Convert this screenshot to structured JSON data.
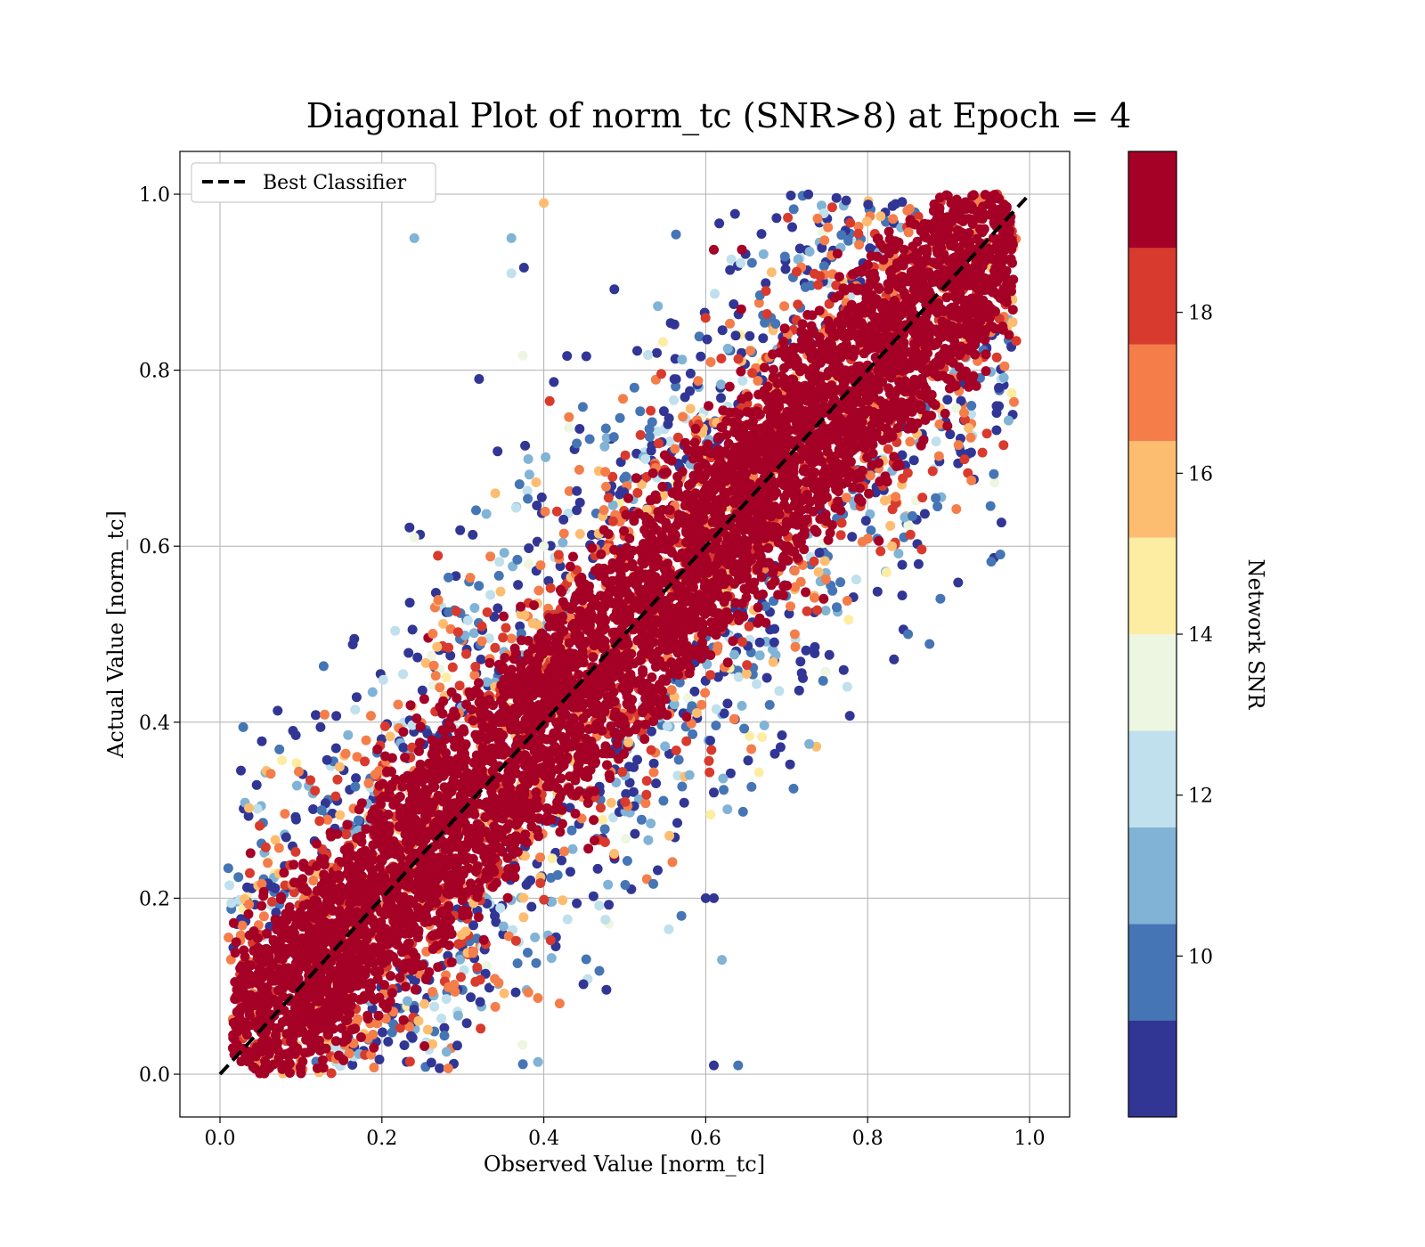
{
  "chart_data": {
    "type": "scatter",
    "title": "Diagonal Plot of norm_tc (SNR>8) at Epoch = 4",
    "xlabel": "Observed Value [norm_tc]",
    "ylabel": "Actual Value [norm_tc]",
    "xlim": [
      -0.05,
      1.05
    ],
    "ylim": [
      -0.05,
      1.05
    ],
    "xticks": [
      "0.0",
      "0.2",
      "0.4",
      "0.6",
      "0.8",
      "1.0"
    ],
    "yticks": [
      "0.0",
      "0.2",
      "0.4",
      "0.6",
      "0.8",
      "1.0"
    ],
    "xtick_values": [
      0,
      0.2,
      0.4,
      0.6,
      0.8,
      1.0
    ],
    "ytick_values": [
      0,
      0.2,
      0.4,
      0.6,
      0.8,
      1.0
    ],
    "grid": true,
    "legend": {
      "position": "top-left",
      "entries": [
        "Best Classifier"
      ]
    },
    "reference_line": {
      "name": "Best Classifier",
      "x": [
        0,
        1
      ],
      "y": [
        0,
        1
      ],
      "style": "dashed",
      "color": "#000000"
    },
    "colorbar": {
      "label": "Network SNR",
      "ticks": [
        "10",
        "12",
        "14",
        "16",
        "18"
      ],
      "tick_values": [
        10,
        12,
        14,
        16,
        18
      ],
      "range": [
        8,
        20
      ],
      "bands": [
        {
          "from": 8.0,
          "to": 9.2,
          "color": "#313695"
        },
        {
          "from": 9.2,
          "to": 10.4,
          "color": "#4575b4"
        },
        {
          "from": 10.4,
          "to": 11.6,
          "color": "#80b3d6"
        },
        {
          "from": 11.6,
          "to": 12.8,
          "color": "#bfe0ec"
        },
        {
          "from": 12.8,
          "to": 14.0,
          "color": "#edf6e0"
        },
        {
          "from": 14.0,
          "to": 15.2,
          "color": "#fdeda2"
        },
        {
          "from": 15.2,
          "to": 16.4,
          "color": "#fdbd70"
        },
        {
          "from": 16.4,
          "to": 17.6,
          "color": "#f47d4a"
        },
        {
          "from": 17.6,
          "to": 18.8,
          "color": "#d83a2d"
        },
        {
          "from": 18.8,
          "to": 20.0,
          "color": "#a50026"
        }
      ]
    },
    "density_description": "Dense high-SNR (dark red) band along y = x with half-width ~0.07; low-SNR points (blue) scattered up to ~0.3 away from the diagonal, concentrated in the upper-middle and lower-middle regions.",
    "series": [
      {
        "name": "Network SNR",
        "sample_points": [
          {
            "x": 0.24,
            "y": 0.95,
            "snr": 11
          },
          {
            "x": 0.32,
            "y": 0.79,
            "snr": 8.5
          },
          {
            "x": 0.85,
            "y": 0.5,
            "snr": 10
          },
          {
            "x": 0.72,
            "y": 0.45,
            "snr": 8.5
          },
          {
            "x": 0.61,
            "y": 0.32,
            "snr": 8.5
          },
          {
            "x": 0.61,
            "y": 0.2,
            "snr": 8.5
          },
          {
            "x": 0.6,
            "y": 0.2,
            "snr": 8.5
          },
          {
            "x": 0.64,
            "y": 0.01,
            "snr": 10
          },
          {
            "x": 0.61,
            "y": 0.01,
            "snr": 8.5
          },
          {
            "x": 0.62,
            "y": 0.13,
            "snr": 11
          },
          {
            "x": 0.58,
            "y": 0.34,
            "snr": 11
          },
          {
            "x": 0.57,
            "y": 0.18,
            "snr": 10
          },
          {
            "x": 0.4,
            "y": 0.6,
            "snr": 13
          },
          {
            "x": 0.36,
            "y": 0.95,
            "snr": 11
          },
          {
            "x": 0.36,
            "y": 0.91,
            "snr": 12.5
          },
          {
            "x": 0.83,
            "y": 0.6,
            "snr": 15.5
          },
          {
            "x": 0.71,
            "y": 0.5,
            "snr": 17
          },
          {
            "x": 0.11,
            "y": 0.15,
            "snr": 19
          },
          {
            "x": 0.02,
            "y": 0.15,
            "snr": 19
          },
          {
            "x": 0.22,
            "y": 0.42,
            "snr": 17
          },
          {
            "x": 0.24,
            "y": 0.61,
            "snr": 13.5
          },
          {
            "x": 0.34,
            "y": 0.66,
            "snr": 15.5
          },
          {
            "x": 0.4,
            "y": 0.99,
            "snr": 15.5
          },
          {
            "x": 0.94,
            "y": 0.96,
            "snr": 19
          }
        ]
      }
    ]
  }
}
